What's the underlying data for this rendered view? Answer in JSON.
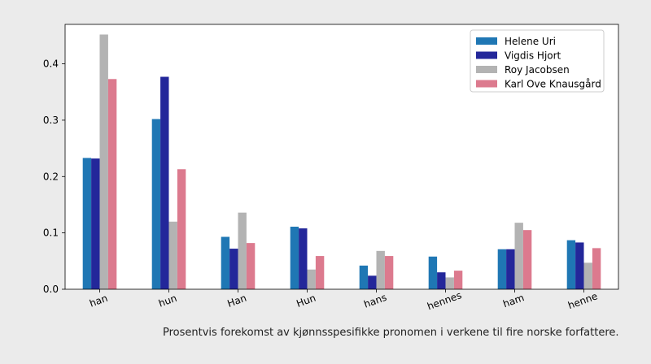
{
  "chart_data": {
    "type": "bar",
    "categories": [
      "han",
      "hun",
      "Han",
      "Hun",
      "hans",
      "hennes",
      "ham",
      "henne"
    ],
    "series": [
      {
        "name": "Helene Uri",
        "color": "#1f77b4",
        "values": [
          0.233,
          0.302,
          0.093,
          0.111,
          0.042,
          0.058,
          0.071,
          0.087
        ]
      },
      {
        "name": "Vigdis Hjort",
        "color": "#23279a",
        "values": [
          0.232,
          0.377,
          0.072,
          0.108,
          0.024,
          0.03,
          0.071,
          0.083
        ]
      },
      {
        "name": "Roy Jacobsen",
        "color": "#b3b3b3",
        "values": [
          0.452,
          0.12,
          0.136,
          0.035,
          0.068,
          0.021,
          0.118,
          0.047
        ]
      },
      {
        "name": "Karl Ove Knausgård",
        "color": "#dc7a8e",
        "values": [
          0.373,
          0.213,
          0.082,
          0.059,
          0.059,
          0.033,
          0.105,
          0.073
        ]
      }
    ],
    "ylim": [
      0,
      0.47
    ],
    "yticks": [
      "0.0",
      "0.1",
      "0.2",
      "0.3",
      "0.4"
    ],
    "legend_position": "top-right",
    "caption": "Prosentvis forekomst av kjønnsspesifikke pronomen i verkene til fire norske forfattere."
  }
}
